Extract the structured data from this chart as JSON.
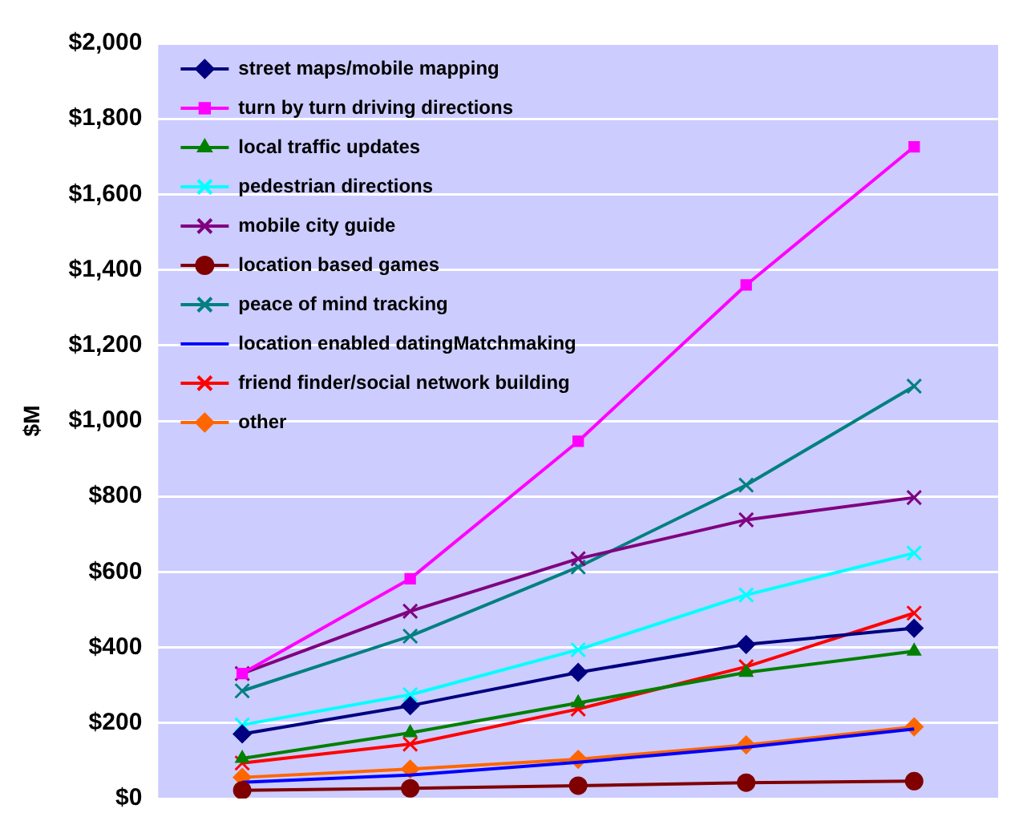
{
  "chart_data": {
    "type": "line",
    "ylabel": "$M",
    "categories": [
      null,
      null,
      null,
      null,
      null
    ],
    "ylim": [
      0,
      2000
    ],
    "yticks": [
      {
        "value": 0,
        "label": "$0"
      },
      {
        "value": 200,
        "label": "$200"
      },
      {
        "value": 400,
        "label": "$400"
      },
      {
        "value": 600,
        "label": "$600"
      },
      {
        "value": 800,
        "label": "$800"
      },
      {
        "value": 1000,
        "label": "$1,000"
      },
      {
        "value": 1200,
        "label": "$1,200"
      },
      {
        "value": 1400,
        "label": "$1,400"
      },
      {
        "value": 1600,
        "label": "$1,600"
      },
      {
        "value": 1800,
        "label": "$1,800"
      },
      {
        "value": 2000,
        "label": "$2,000"
      }
    ],
    "grid": "y",
    "legend": "top left",
    "series": [
      {
        "name": "street maps/mobile mapping",
        "color": "#000080",
        "marker": "diamond",
        "values": [
          171,
          246,
          334,
          408,
          451
        ]
      },
      {
        "name": "turn by turn driving directions",
        "color": "#ff00ff",
        "marker": "square",
        "values": [
          331,
          582,
          946,
          1360,
          1726
        ]
      },
      {
        "name": "local traffic updates",
        "color": "#008000",
        "marker": "triangle",
        "values": [
          106,
          174,
          253,
          334,
          390
        ]
      },
      {
        "name": "pedestrian directions",
        "color": "#00ffff",
        "marker": "cross",
        "values": [
          195,
          275,
          394,
          539,
          650
        ]
      },
      {
        "name": "mobile city guide",
        "color": "#800080",
        "marker": "cross",
        "values": [
          331,
          496,
          635,
          738,
          797
        ]
      },
      {
        "name": "location based games",
        "color": "#800000",
        "marker": "circle",
        "values": [
          22,
          27,
          34,
          42,
          46
        ]
      },
      {
        "name": "peace of mind tracking",
        "color": "#008080",
        "marker": "cross",
        "values": [
          285,
          430,
          613,
          830,
          1092
        ]
      },
      {
        "name": "location enabled datingMatchmaking",
        "color": "#0000ff",
        "marker": "none",
        "values": [
          43,
          62,
          96,
          136,
          184
        ]
      },
      {
        "name": "friend finder/social network building",
        "color": "#ff0000",
        "marker": "cross",
        "values": [
          94,
          144,
          237,
          349,
          491
        ]
      },
      {
        "name": "other",
        "color": "#ff6600",
        "marker": "diamond",
        "values": [
          56,
          78,
          104,
          142,
          190
        ]
      }
    ]
  }
}
